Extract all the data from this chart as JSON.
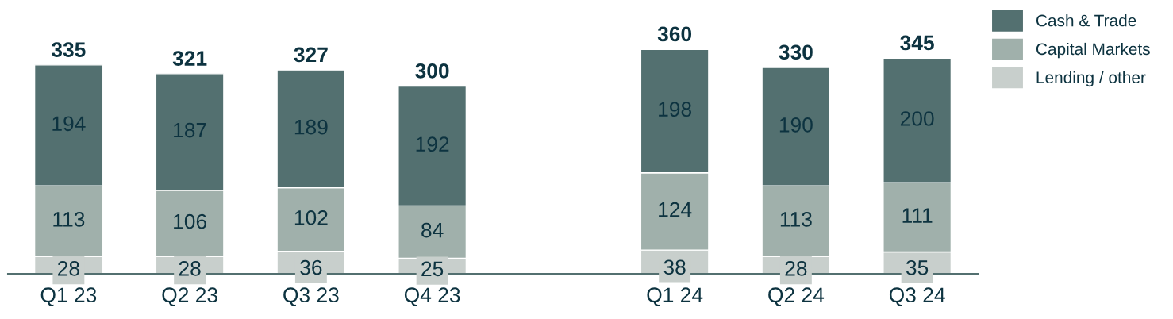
{
  "chart_data": {
    "type": "bar",
    "stacked": true,
    "categories": [
      "Q1 23",
      "Q2 23",
      "Q3 23",
      "Q4 23",
      null,
      "Q1 24",
      "Q2 24",
      "Q3 24"
    ],
    "series": [
      {
        "name": "Lending / other",
        "color": "#c8cfcc",
        "values": [
          28,
          28,
          36,
          25,
          null,
          38,
          28,
          35
        ]
      },
      {
        "name": "Capital Markets",
        "color": "#a0b0ab",
        "values": [
          113,
          106,
          102,
          84,
          null,
          124,
          113,
          111
        ]
      },
      {
        "name": "Cash & Trade",
        "color": "#537070",
        "values": [
          194,
          187,
          189,
          192,
          null,
          198,
          190,
          200
        ]
      }
    ],
    "totals": [
      "335",
      "321",
      "327",
      "300",
      null,
      "360",
      "330",
      "345"
    ],
    "data_labels": true,
    "legend": "right",
    "grid": false
  }
}
